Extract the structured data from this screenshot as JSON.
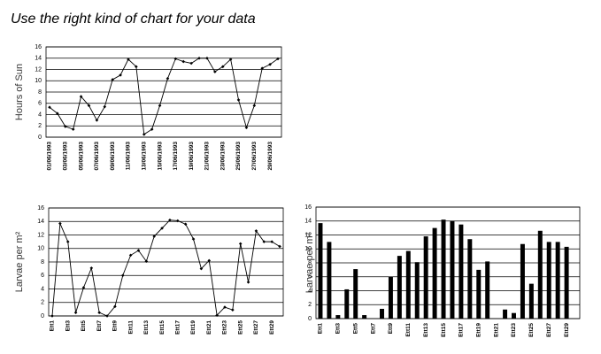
{
  "title": "Use the right kind of chart for your data",
  "chart_data": [
    {
      "type": "line",
      "ylabel": "Hours of Sun",
      "color": "#000000",
      "grid": true,
      "categories": [
        "01/06/1993",
        null,
        "03/06/1993",
        null,
        "05/06/1993",
        null,
        "07/06/1993",
        null,
        "09/06/1993",
        null,
        "11/06/1993",
        null,
        "13/06/1993",
        null,
        "15/06/1993",
        null,
        "17/06/1993",
        null,
        "19/06/1993",
        null,
        "21/06/1993",
        null,
        "23/06/1993",
        null,
        "25/06/1993",
        null,
        "27/06/1993",
        null,
        "29/06/1993",
        null
      ],
      "values": [
        5.3,
        4.2,
        1.9,
        1.4,
        7.2,
        5.6,
        3.0,
        5.4,
        10.2,
        11.0,
        13.8,
        12.5,
        0.5,
        1.4,
        5.6,
        10.4,
        13.9,
        13.4,
        13.1,
        14.0,
        14.0,
        11.6,
        12.5,
        13.8,
        6.6,
        1.7,
        5.6,
        12.2,
        12.9,
        13.9
      ],
      "ylim": [
        0,
        16
      ],
      "yticks": [
        0,
        2,
        4,
        6,
        8,
        10,
        12,
        14,
        16
      ]
    },
    {
      "type": "line",
      "ylabel": "Larvae per m²",
      "color": "#000000",
      "grid": true,
      "categories": [
        "Ett1",
        null,
        "Ett3",
        null,
        "Ett5",
        null,
        "Ett7",
        null,
        "Ett9",
        null,
        "Ett11",
        null,
        "Ett13",
        null,
        "Ett15",
        null,
        "Ett17",
        null,
        "Ett19",
        null,
        "Ett21",
        null,
        "Ett23",
        null,
        "Ett25",
        null,
        "Ett27",
        null,
        "Ett29",
        null
      ],
      "values": [
        0,
        13.7,
        11.0,
        0.5,
        4.2,
        7.1,
        0.5,
        0,
        1.4,
        6.0,
        9.0,
        9.7,
        8.1,
        11.8,
        13.0,
        14.2,
        14.1,
        13.6,
        11.4,
        7.0,
        8.2,
        0.1,
        1.3,
        0.9,
        10.7,
        5.0,
        12.6,
        11.0,
        11.0,
        10.3
      ],
      "ylim": [
        0,
        16
      ],
      "yticks": [
        0,
        2,
        4,
        6,
        8,
        10,
        12,
        14,
        16
      ]
    },
    {
      "type": "bar",
      "ylabel": "Larvae per m²",
      "color": "#000000",
      "grid": true,
      "categories": [
        "Ett1",
        null,
        "Ett3",
        null,
        "Ett5",
        null,
        "Ett7",
        null,
        "Ett9",
        null,
        "Ett11",
        null,
        "Ett13",
        null,
        "Ett15",
        null,
        "Ett17",
        null,
        "Ett19",
        null,
        "Ett21",
        null,
        "Ett23",
        null,
        "Ett25",
        null,
        "Ett27",
        null,
        "Ett29",
        null
      ],
      "values": [
        13.7,
        11.0,
        0.5,
        4.2,
        7.1,
        0.5,
        0,
        1.4,
        6.0,
        9.0,
        9.7,
        8.1,
        11.8,
        13.0,
        14.2,
        14.0,
        13.5,
        11.4,
        7.0,
        8.2,
        0,
        1.3,
        0.8,
        10.7,
        5.0,
        12.6,
        11.0,
        11.0,
        10.3,
        0
      ],
      "ylim": [
        0,
        16
      ],
      "yticks": [
        0,
        2,
        4,
        6,
        8,
        10,
        12,
        14,
        16
      ]
    }
  ]
}
